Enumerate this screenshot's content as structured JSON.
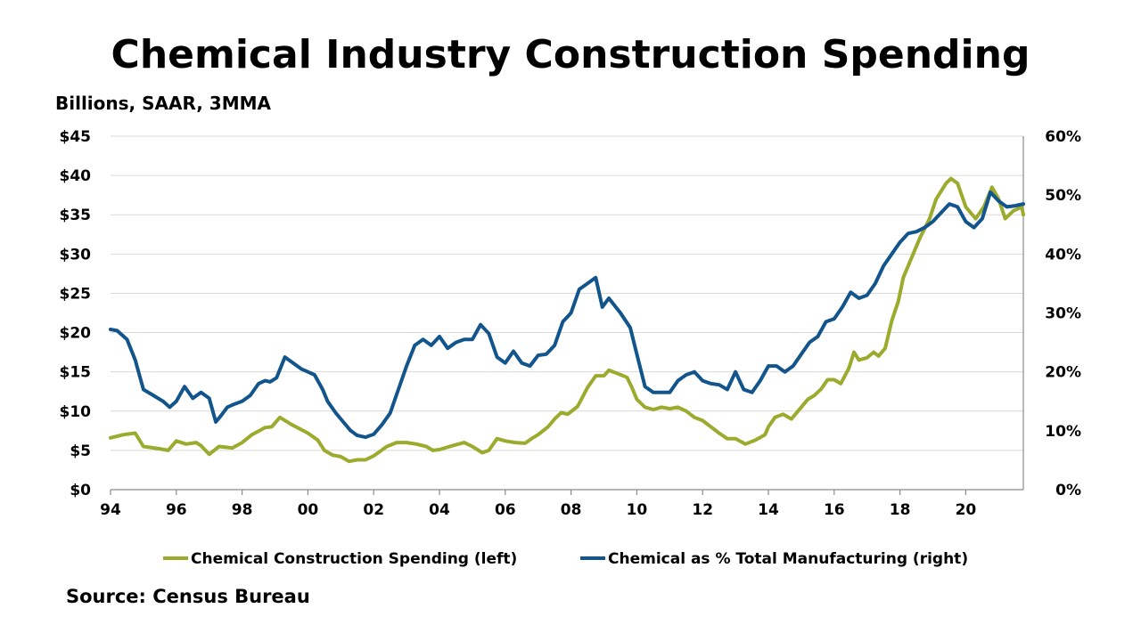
{
  "title": "Chemical Industry Construction Spending",
  "subtitle": "Billions, SAAR, 3MMA",
  "source": "Source: Census Bureau",
  "colors": {
    "left_series": "#9aab2e",
    "right_series": "#12548c",
    "grid": "#d9d9d9",
    "axis": "#8c8c8c"
  },
  "chart_data": {
    "type": "line",
    "title": "Chemical Industry Construction Spending",
    "subtitle": "Billions, SAAR, 3MMA",
    "x_range": [
      1994,
      2021.75
    ],
    "x_ticks": [
      1994,
      1996,
      1998,
      2000,
      2002,
      2004,
      2006,
      2008,
      2010,
      2012,
      2014,
      2016,
      2018,
      2020
    ],
    "x_tick_labels": [
      "94",
      "96",
      "98",
      "00",
      "02",
      "04",
      "06",
      "08",
      "10",
      "12",
      "14",
      "16",
      "18",
      "20"
    ],
    "y_left": {
      "range": [
        0,
        45
      ],
      "ticks": [
        0,
        5,
        10,
        15,
        20,
        25,
        30,
        35,
        40,
        45
      ],
      "tick_labels": [
        "$0",
        "$5",
        "$10",
        "$15",
        "$20",
        "$25",
        "$30",
        "$35",
        "$40",
        "$45"
      ]
    },
    "y_right": {
      "range": [
        0,
        60
      ],
      "ticks": [
        0,
        10,
        20,
        30,
        40,
        50,
        60
      ],
      "tick_labels": [
        "0%",
        "10%",
        "20%",
        "30%",
        "40%",
        "50%",
        "60%"
      ]
    },
    "grid": true,
    "legend_position": "bottom",
    "series": [
      {
        "name": "Chemical Construction Spending (left)",
        "axis": "left",
        "color": "#9aab2e",
        "points": [
          [
            1994.0,
            6.6
          ],
          [
            1994.4,
            7.0
          ],
          [
            1994.75,
            7.2
          ],
          [
            1995.0,
            5.5
          ],
          [
            1995.5,
            5.2
          ],
          [
            1995.75,
            5.0
          ],
          [
            1996.0,
            6.2
          ],
          [
            1996.3,
            5.8
          ],
          [
            1996.6,
            6.0
          ],
          [
            1996.75,
            5.6
          ],
          [
            1997.0,
            4.5
          ],
          [
            1997.3,
            5.5
          ],
          [
            1997.7,
            5.3
          ],
          [
            1998.0,
            6.0
          ],
          [
            1998.3,
            7.0
          ],
          [
            1998.7,
            7.9
          ],
          [
            1998.9,
            8.0
          ],
          [
            1999.15,
            9.2
          ],
          [
            1999.5,
            8.3
          ],
          [
            2000.0,
            7.2
          ],
          [
            2000.3,
            6.3
          ],
          [
            2000.5,
            5.0
          ],
          [
            2000.75,
            4.4
          ],
          [
            2001.0,
            4.2
          ],
          [
            2001.25,
            3.6
          ],
          [
            2001.5,
            3.8
          ],
          [
            2001.75,
            3.8
          ],
          [
            2002.0,
            4.3
          ],
          [
            2002.4,
            5.5
          ],
          [
            2002.7,
            6.0
          ],
          [
            2003.0,
            6.0
          ],
          [
            2003.3,
            5.8
          ],
          [
            2003.6,
            5.5
          ],
          [
            2003.8,
            5.0
          ],
          [
            2004.0,
            5.1
          ],
          [
            2004.4,
            5.6
          ],
          [
            2004.75,
            6.0
          ],
          [
            2005.0,
            5.5
          ],
          [
            2005.3,
            4.7
          ],
          [
            2005.5,
            5.0
          ],
          [
            2005.75,
            6.5
          ],
          [
            2006.0,
            6.2
          ],
          [
            2006.3,
            6.0
          ],
          [
            2006.6,
            5.9
          ],
          [
            2006.8,
            6.5
          ],
          [
            2007.0,
            7.0
          ],
          [
            2007.3,
            8.0
          ],
          [
            2007.5,
            9.0
          ],
          [
            2007.7,
            9.8
          ],
          [
            2007.9,
            9.6
          ],
          [
            2008.2,
            10.6
          ],
          [
            2008.5,
            13.0
          ],
          [
            2008.75,
            14.5
          ],
          [
            2009.0,
            14.5
          ],
          [
            2009.15,
            15.2
          ],
          [
            2009.4,
            14.8
          ],
          [
            2009.7,
            14.3
          ],
          [
            2009.85,
            13.0
          ],
          [
            2010.0,
            11.5
          ],
          [
            2010.25,
            10.5
          ],
          [
            2010.5,
            10.2
          ],
          [
            2010.75,
            10.5
          ],
          [
            2011.0,
            10.3
          ],
          [
            2011.25,
            10.5
          ],
          [
            2011.5,
            10.0
          ],
          [
            2011.75,
            9.2
          ],
          [
            2012.0,
            8.8
          ],
          [
            2012.25,
            8.0
          ],
          [
            2012.5,
            7.2
          ],
          [
            2012.75,
            6.5
          ],
          [
            2013.0,
            6.5
          ],
          [
            2013.3,
            5.8
          ],
          [
            2013.6,
            6.3
          ],
          [
            2013.9,
            7.0
          ],
          [
            2014.0,
            8.0
          ],
          [
            2014.2,
            9.2
          ],
          [
            2014.45,
            9.6
          ],
          [
            2014.7,
            9.0
          ],
          [
            2014.9,
            10.0
          ],
          [
            2015.2,
            11.5
          ],
          [
            2015.4,
            12.0
          ],
          [
            2015.6,
            12.8
          ],
          [
            2015.8,
            14.0
          ],
          [
            2016.0,
            14.0
          ],
          [
            2016.2,
            13.5
          ],
          [
            2016.45,
            15.5
          ],
          [
            2016.6,
            17.5
          ],
          [
            2016.75,
            16.5
          ],
          [
            2017.0,
            16.8
          ],
          [
            2017.2,
            17.5
          ],
          [
            2017.35,
            17.0
          ],
          [
            2017.55,
            18.0
          ],
          [
            2017.75,
            21.5
          ],
          [
            2017.95,
            24.0
          ],
          [
            2018.1,
            27.0
          ],
          [
            2018.3,
            29.0
          ],
          [
            2018.6,
            32.0
          ],
          [
            2018.9,
            34.5
          ],
          [
            2019.1,
            37.0
          ],
          [
            2019.4,
            39.0
          ],
          [
            2019.55,
            39.6
          ],
          [
            2019.75,
            39.0
          ],
          [
            2020.0,
            36.0
          ],
          [
            2020.3,
            34.5
          ],
          [
            2020.55,
            36.0
          ],
          [
            2020.8,
            38.5
          ],
          [
            2021.0,
            37.0
          ],
          [
            2021.2,
            34.5
          ],
          [
            2021.45,
            35.5
          ],
          [
            2021.7,
            36.0
          ],
          [
            2021.75,
            35.0
          ]
        ]
      },
      {
        "name": "Chemical as % Total Manufacturing (right)",
        "axis": "right",
        "color": "#12548c",
        "points": [
          [
            1994.0,
            27.2
          ],
          [
            1994.2,
            27.0
          ],
          [
            1994.5,
            25.5
          ],
          [
            1994.75,
            22.0
          ],
          [
            1995.0,
            17.0
          ],
          [
            1995.3,
            16.0
          ],
          [
            1995.6,
            15.0
          ],
          [
            1995.8,
            14.0
          ],
          [
            1996.0,
            15.0
          ],
          [
            1996.25,
            17.5
          ],
          [
            1996.5,
            15.5
          ],
          [
            1996.75,
            16.5
          ],
          [
            1997.0,
            15.5
          ],
          [
            1997.2,
            11.5
          ],
          [
            1997.35,
            12.5
          ],
          [
            1997.55,
            14.0
          ],
          [
            1997.75,
            14.5
          ],
          [
            1998.0,
            15.0
          ],
          [
            1998.25,
            16.0
          ],
          [
            1998.5,
            18.0
          ],
          [
            1998.7,
            18.5
          ],
          [
            1998.85,
            18.3
          ],
          [
            1999.05,
            19.0
          ],
          [
            1999.3,
            22.5
          ],
          [
            1999.55,
            21.5
          ],
          [
            1999.8,
            20.5
          ],
          [
            2000.0,
            20.0
          ],
          [
            2000.2,
            19.5
          ],
          [
            2000.45,
            17.0
          ],
          [
            2000.6,
            15.0
          ],
          [
            2000.85,
            13.0
          ],
          [
            2001.0,
            12.0
          ],
          [
            2001.3,
            10.0
          ],
          [
            2001.5,
            9.2
          ],
          [
            2001.75,
            8.9
          ],
          [
            2002.0,
            9.4
          ],
          [
            2002.25,
            11.0
          ],
          [
            2002.5,
            13.0
          ],
          [
            2002.75,
            17.0
          ],
          [
            2003.0,
            21.0
          ],
          [
            2003.25,
            24.5
          ],
          [
            2003.5,
            25.5
          ],
          [
            2003.75,
            24.5
          ],
          [
            2004.0,
            26.0
          ],
          [
            2004.25,
            24.0
          ],
          [
            2004.5,
            25.0
          ],
          [
            2004.75,
            25.5
          ],
          [
            2005.0,
            25.5
          ],
          [
            2005.25,
            28.0
          ],
          [
            2005.5,
            26.5
          ],
          [
            2005.75,
            22.5
          ],
          [
            2006.0,
            21.5
          ],
          [
            2006.25,
            23.5
          ],
          [
            2006.5,
            21.5
          ],
          [
            2006.75,
            21.0
          ],
          [
            2007.0,
            22.8
          ],
          [
            2007.25,
            23.0
          ],
          [
            2007.5,
            24.5
          ],
          [
            2007.75,
            28.5
          ],
          [
            2008.0,
            30.0
          ],
          [
            2008.25,
            34.0
          ],
          [
            2008.5,
            35.0
          ],
          [
            2008.75,
            36.0
          ],
          [
            2008.95,
            31.0
          ],
          [
            2009.15,
            32.5
          ],
          [
            2009.5,
            30.0
          ],
          [
            2009.8,
            27.5
          ],
          [
            2010.0,
            23.0
          ],
          [
            2010.25,
            17.5
          ],
          [
            2010.5,
            16.5
          ],
          [
            2010.75,
            16.5
          ],
          [
            2011.0,
            16.5
          ],
          [
            2011.25,
            18.5
          ],
          [
            2011.5,
            19.5
          ],
          [
            2011.75,
            20.0
          ],
          [
            2012.0,
            18.5
          ],
          [
            2012.25,
            18.0
          ],
          [
            2012.5,
            17.8
          ],
          [
            2012.75,
            17.0
          ],
          [
            2013.0,
            20.0
          ],
          [
            2013.25,
            17.0
          ],
          [
            2013.5,
            16.5
          ],
          [
            2013.75,
            18.5
          ],
          [
            2014.0,
            21.0
          ],
          [
            2014.25,
            21.0
          ],
          [
            2014.5,
            20.0
          ],
          [
            2014.75,
            21.0
          ],
          [
            2015.0,
            23.0
          ],
          [
            2015.25,
            25.0
          ],
          [
            2015.5,
            26.0
          ],
          [
            2015.75,
            28.5
          ],
          [
            2016.0,
            29.0
          ],
          [
            2016.25,
            31.0
          ],
          [
            2016.5,
            33.5
          ],
          [
            2016.75,
            32.5
          ],
          [
            2017.0,
            33.0
          ],
          [
            2017.25,
            35.0
          ],
          [
            2017.5,
            38.0
          ],
          [
            2017.75,
            40.0
          ],
          [
            2018.0,
            42.0
          ],
          [
            2018.25,
            43.5
          ],
          [
            2018.5,
            43.8
          ],
          [
            2018.75,
            44.5
          ],
          [
            2019.0,
            45.5
          ],
          [
            2019.25,
            47.0
          ],
          [
            2019.5,
            48.5
          ],
          [
            2019.75,
            48.0
          ],
          [
            2020.0,
            45.5
          ],
          [
            2020.25,
            44.5
          ],
          [
            2020.5,
            46.0
          ],
          [
            2020.75,
            50.5
          ],
          [
            2021.0,
            49.0
          ],
          [
            2021.25,
            48.0
          ],
          [
            2021.5,
            48.2
          ],
          [
            2021.75,
            48.5
          ]
        ]
      }
    ]
  }
}
